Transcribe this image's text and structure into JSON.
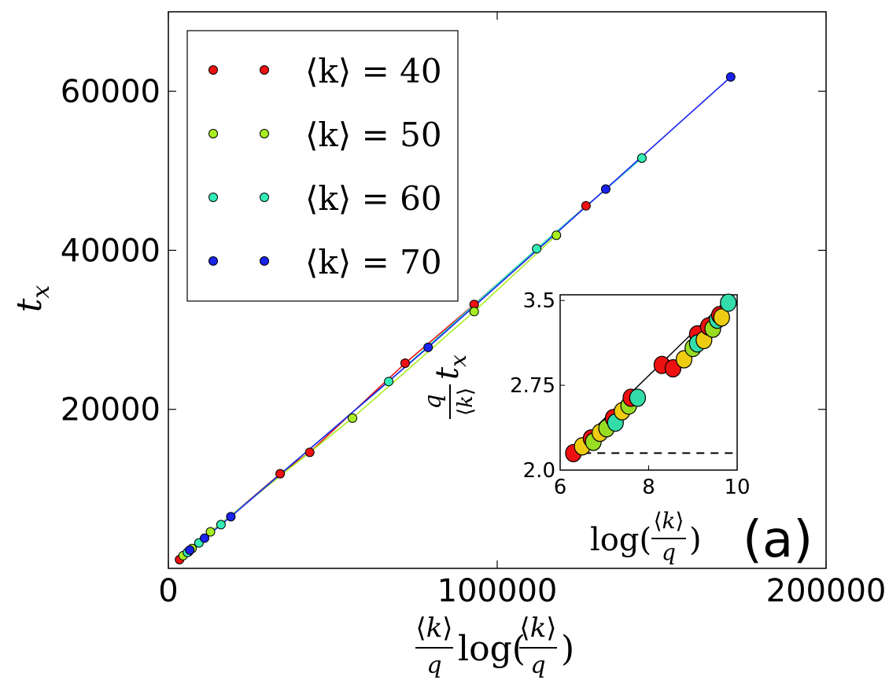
{
  "chart_data": [
    {
      "type": "line",
      "title": "",
      "xlabel": "⟨k⟩/q log(⟨k⟩/q)",
      "ylabel": "t_x",
      "xlim": [
        0,
        200000
      ],
      "ylim": [
        0,
        70000
      ],
      "xticks": [
        "0",
        "100000",
        "200000"
      ],
      "yticks": [
        "20000",
        "40000",
        "60000"
      ],
      "xtick_values": [
        0,
        100000,
        200000
      ],
      "ytick_values": [
        20000,
        40000,
        60000
      ],
      "grid": false,
      "legend_position": "top-left",
      "panel_label": "(a)",
      "series": [
        {
          "name": "⟨k⟩ = 40",
          "color": "#ee1111",
          "x": [
            3400,
            6200,
            34000,
            43000,
            93000,
            72000,
            127000
          ],
          "y": [
            1100,
            2100,
            11900,
            14600,
            33200,
            25800,
            45600
          ]
        },
        {
          "name": "⟨k⟩ = 50",
          "color": "#a8ee22",
          "x": [
            4500,
            7200,
            12800,
            56000,
            93000,
            118000
          ],
          "y": [
            1600,
            2500,
            4600,
            18900,
            32300,
            41900
          ]
        },
        {
          "name": "⟨k⟩ = 60",
          "color": "#33eeb8",
          "x": [
            5800,
            9300,
            16000,
            67000,
            112000,
            144000
          ],
          "y": [
            2000,
            3200,
            5500,
            23500,
            40200,
            51600
          ]
        },
        {
          "name": "⟨k⟩ = 70",
          "color": "#1a22ee",
          "x": [
            6500,
            11000,
            19000,
            79000,
            133000,
            171000
          ],
          "y": [
            2300,
            3800,
            6500,
            27800,
            47700,
            61800
          ]
        }
      ]
    },
    {
      "type": "scatter",
      "title": "",
      "xlabel": "log(⟨k⟩/q)",
      "ylabel": "q/⟨k⟩ t_x",
      "xlim": [
        6,
        10
      ],
      "ylim": [
        2.0,
        3.55
      ],
      "xticks": [
        "6",
        "8",
        "10"
      ],
      "yticks": [
        "2.0",
        "2.75",
        "3.5"
      ],
      "xtick_values": [
        6,
        8,
        10
      ],
      "ytick_values": [
        2.0,
        2.75,
        3.5
      ],
      "reference_line_y": 2.15,
      "fit_line": {
        "x": [
          6.2,
          9.8
        ],
        "y": [
          2.15,
          3.52
        ]
      },
      "point_colors": [
        "#ee1111",
        "#eecc11",
        "#99dd22",
        "#33ddaa"
      ],
      "points": [
        {
          "x": 6.3,
          "y": 2.15,
          "c": 0
        },
        {
          "x": 6.5,
          "y": 2.21,
          "c": 1
        },
        {
          "x": 6.7,
          "y": 2.28,
          "c": 0
        },
        {
          "x": 6.75,
          "y": 2.25,
          "c": 2
        },
        {
          "x": 6.9,
          "y": 2.33,
          "c": 1
        },
        {
          "x": 7.05,
          "y": 2.37,
          "c": 2
        },
        {
          "x": 7.2,
          "y": 2.46,
          "c": 0
        },
        {
          "x": 7.25,
          "y": 2.42,
          "c": 3
        },
        {
          "x": 7.4,
          "y": 2.52,
          "c": 1
        },
        {
          "x": 7.55,
          "y": 2.57,
          "c": 2
        },
        {
          "x": 7.6,
          "y": 2.64,
          "c": 0
        },
        {
          "x": 7.75,
          "y": 2.64,
          "c": 3
        },
        {
          "x": 8.3,
          "y": 2.93,
          "c": 0
        },
        {
          "x": 8.55,
          "y": 2.9,
          "c": 0
        },
        {
          "x": 8.8,
          "y": 2.98,
          "c": 1
        },
        {
          "x": 9.0,
          "y": 3.08,
          "c": 2
        },
        {
          "x": 9.1,
          "y": 3.2,
          "c": 0
        },
        {
          "x": 9.1,
          "y": 3.12,
          "c": 3
        },
        {
          "x": 9.25,
          "y": 3.15,
          "c": 1
        },
        {
          "x": 9.35,
          "y": 3.27,
          "c": 0
        },
        {
          "x": 9.45,
          "y": 3.25,
          "c": 2
        },
        {
          "x": 9.55,
          "y": 3.33,
          "c": 3
        },
        {
          "x": 9.6,
          "y": 3.37,
          "c": 0
        },
        {
          "x": 9.65,
          "y": 3.35,
          "c": 1
        },
        {
          "x": 9.8,
          "y": 3.48,
          "c": 3
        }
      ]
    }
  ]
}
